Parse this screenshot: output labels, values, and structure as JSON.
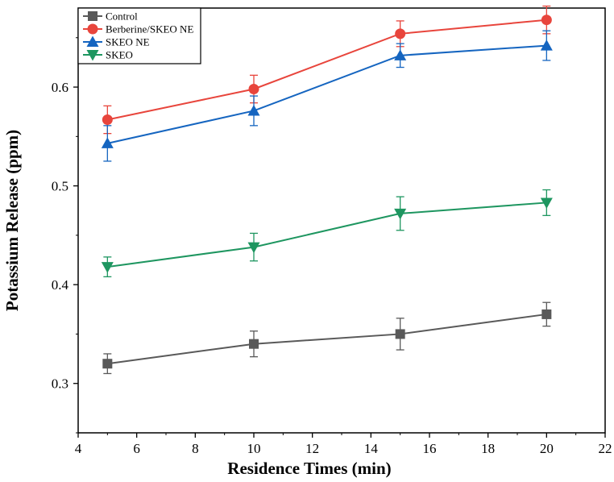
{
  "chart_data": {
    "type": "line",
    "title": "",
    "xlabel": "Residence Times (min)",
    "ylabel": "Potassium Release (ppm)",
    "xlim": [
      4,
      22
    ],
    "ylim": [
      0.25,
      0.68
    ],
    "xticks": [
      4,
      6,
      8,
      10,
      12,
      14,
      16,
      18,
      20,
      22
    ],
    "yticks": [
      0.3,
      0.4,
      0.5,
      0.6
    ],
    "x": [
      5,
      10,
      15,
      20
    ],
    "legend_position": "top-left",
    "series": [
      {
        "name": "Control",
        "color": "#595959",
        "marker": "square",
        "values": [
          0.32,
          0.34,
          0.35,
          0.37
        ],
        "errors": [
          0.01,
          0.013,
          0.016,
          0.012
        ]
      },
      {
        "name": "Berberine/SKEO NE",
        "color": "#e8453c",
        "marker": "circle",
        "values": [
          0.567,
          0.598,
          0.654,
          0.668
        ],
        "errors": [
          0.014,
          0.014,
          0.013,
          0.014
        ]
      },
      {
        "name": "SKEO NE",
        "color": "#1565c0",
        "marker": "triangle-up",
        "values": [
          0.543,
          0.576,
          0.632,
          0.642
        ],
        "errors": [
          0.018,
          0.015,
          0.012,
          0.015
        ]
      },
      {
        "name": "SKEO",
        "color": "#1e9660",
        "marker": "triangle-down",
        "values": [
          0.418,
          0.438,
          0.472,
          0.483
        ],
        "errors": [
          0.01,
          0.014,
          0.017,
          0.013
        ]
      }
    ]
  }
}
